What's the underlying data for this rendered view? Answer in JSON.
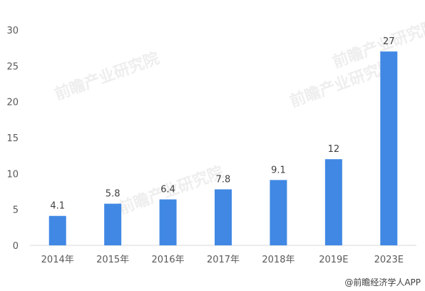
{
  "chart_data": {
    "type": "bar",
    "categories": [
      "2014年",
      "2015年",
      "2016年",
      "2017年",
      "2018年",
      "2019E",
      "2023E"
    ],
    "values": [
      4.1,
      5.8,
      6.4,
      7.8,
      9.1,
      12,
      27
    ],
    "data_labels": [
      "4.1",
      "5.8",
      "6.4",
      "7.8",
      "9.1",
      "12",
      "27"
    ],
    "yticks": [
      "0",
      "5",
      "10",
      "15",
      "20",
      "25",
      "30"
    ],
    "ylim": [
      0,
      30
    ],
    "grid": false,
    "bar_color": "#4088E4"
  },
  "source_credit": "@前瞻经济学人APP",
  "watermark": "前瞻产业研究院"
}
